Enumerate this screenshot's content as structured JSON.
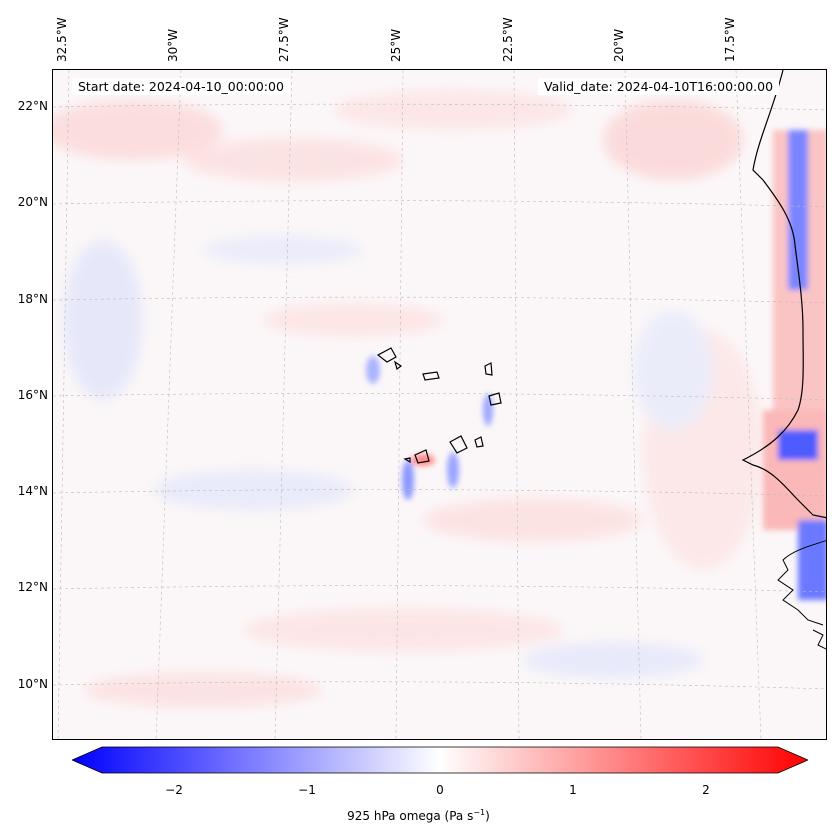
{
  "map": {
    "start_date": "Start date: 2024-04-10_00:00:00",
    "valid_date": "Valid_date: 2024-04-10T16:00:00.00",
    "lon_labels": [
      "32.5°W",
      "30°W",
      "27.5°W",
      "25°W",
      "22.5°W",
      "20°W",
      "17.5°W"
    ],
    "lat_labels": [
      "22°N",
      "20°N",
      "18°N",
      "16°N",
      "14°N",
      "12°N",
      "10°N"
    ]
  },
  "colorbar": {
    "ticks": [
      "−2",
      "−1",
      "0",
      "1",
      "2"
    ],
    "label_prefix": "925 hPa omega (Pa s",
    "label_sup": "−1",
    "label_suffix": ")",
    "range": [
      -2.6,
      2.6
    ],
    "colors": {
      "neg": "#0000ff",
      "mid": "#ffffff",
      "pos": "#ff0000"
    }
  }
}
